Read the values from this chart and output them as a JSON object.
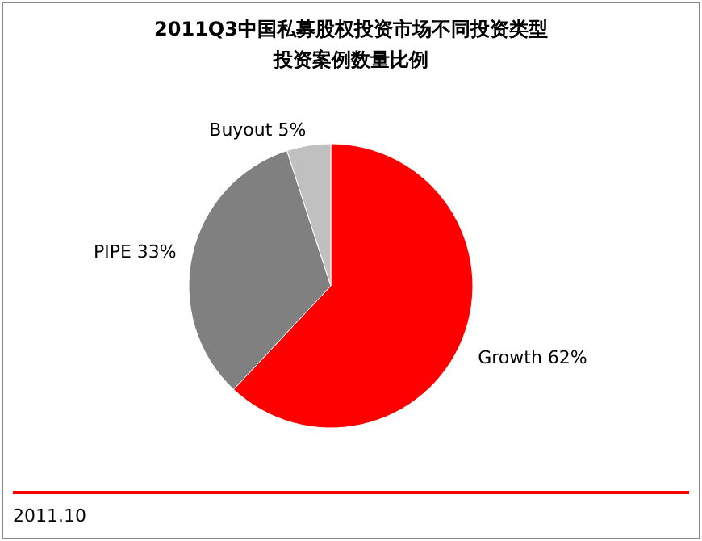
{
  "chart_data": {
    "type": "pie",
    "title": "2011Q3中国私募股权投资市场不同投资类型",
    "subtitle": "投资案例数量比例",
    "categories": [
      "Growth",
      "PIPE",
      "Buyout"
    ],
    "values": [
      62,
      33,
      5
    ],
    "colors": [
      "#ff0000",
      "#808080",
      "#c0c0c0"
    ],
    "value_labels": [
      "62%",
      "33%",
      "5%"
    ],
    "annotations": [
      "2011.10"
    ]
  }
}
